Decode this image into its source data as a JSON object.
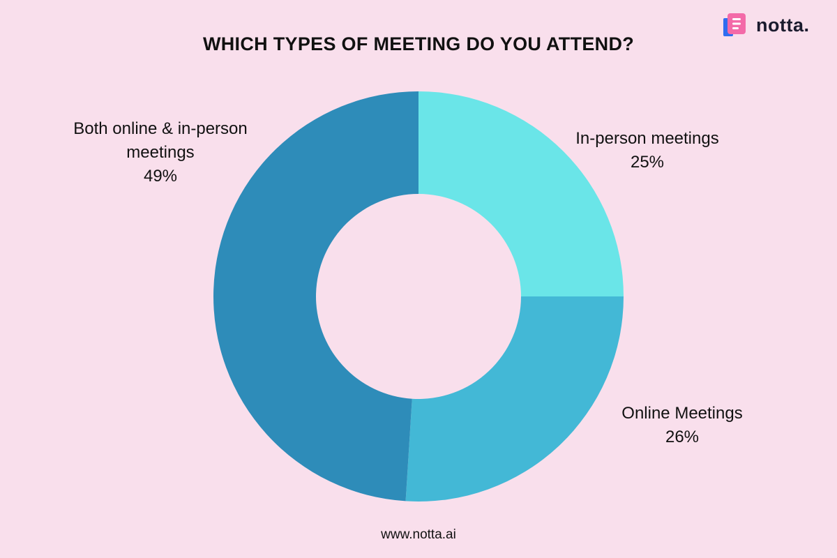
{
  "brand": {
    "name": "notta.",
    "url": "www.notta.ai"
  },
  "chart_data": {
    "type": "pie",
    "title": "WHICH TYPES OF MEETING DO YOU ATTEND?",
    "donut": true,
    "start": "12 o'clock, clockwise",
    "slices": [
      {
        "label": "In-person meetings",
        "value": 25,
        "display": "25%",
        "color": "#6ae5e8"
      },
      {
        "label": "Online Meetings",
        "value": 26,
        "display": "26%",
        "color": "#43b8d6"
      },
      {
        "label": "Both online & in-person meetings",
        "value": 49,
        "display": "49%",
        "color": "#2e8cb9"
      }
    ]
  },
  "colors": {
    "background": "#f9dfec",
    "logo_pink": "#f36aa8",
    "logo_blue": "#2f6df0"
  }
}
